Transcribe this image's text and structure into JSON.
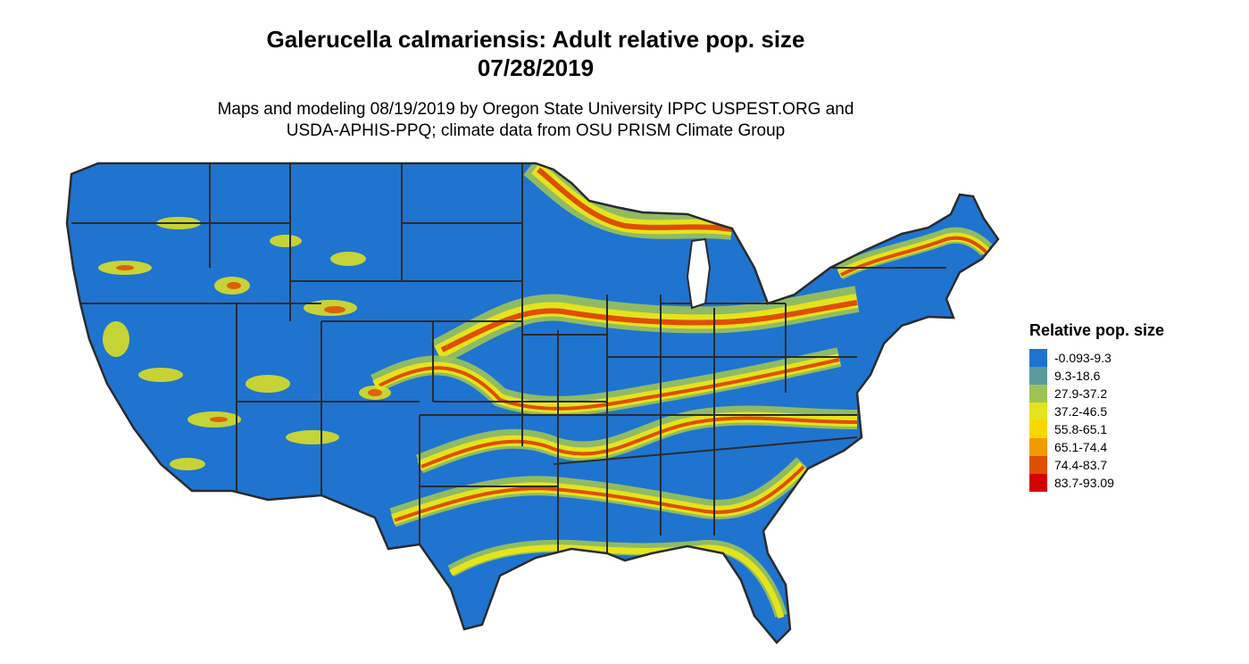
{
  "title": {
    "line1": "Galerucella calmariensis: Adult relative pop. size",
    "line2": "07/28/2019"
  },
  "subtitle": {
    "line1": "Maps and modeling 08/19/2019 by Oregon State University IPPC USPEST.ORG and",
    "line2": "USDA-APHIS-PPQ; climate data from OSU PRISM Climate Group"
  },
  "map": {
    "region": "Contiguous United States",
    "base_color": "#1f74d0",
    "border_color": "#2b2b2b"
  },
  "legend": {
    "title": "Relative pop. size",
    "items": [
      {
        "label": "-0.093-9.3",
        "color": "#1f74d0"
      },
      {
        "label": "9.3-18.6",
        "color": "#5a9a9a"
      },
      {
        "label": "27.9-37.2",
        "color": "#9cc356"
      },
      {
        "label": "37.2-46.5",
        "color": "#e4e41c"
      },
      {
        "label": "55.8-65.1",
        "color": "#f8d700"
      },
      {
        "label": "65.1-74.4",
        "color": "#f09a00"
      },
      {
        "label": "74.4-83.7",
        "color": "#e04e00"
      },
      {
        "label": "83.7-93.09",
        "color": "#d40000"
      }
    ]
  }
}
